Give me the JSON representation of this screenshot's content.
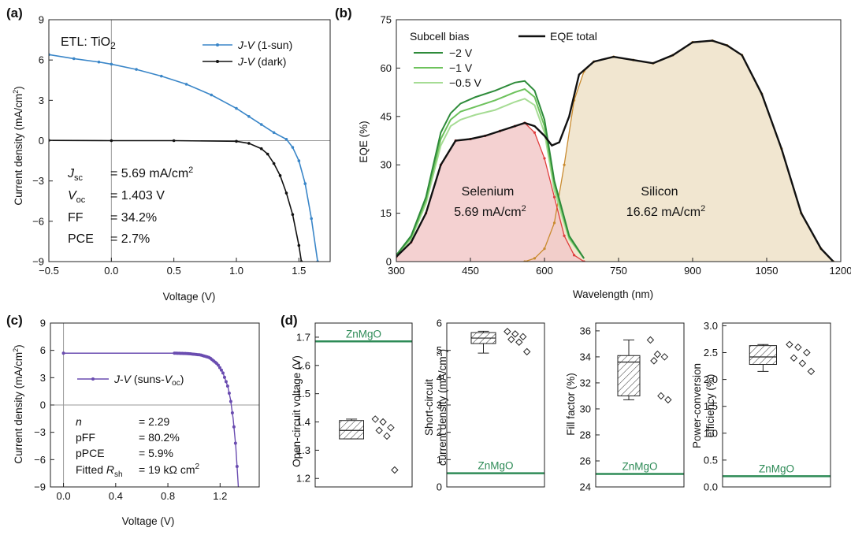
{
  "chart_data": [
    {
      "panel": "(a)",
      "type": "line",
      "annotation": "ETL: TiO2",
      "xlabel": "Voltage (V)",
      "ylabel": "Current density (mA/cm2)",
      "xlim": [
        -0.5,
        1.75
      ],
      "ylim": [
        -9,
        9
      ],
      "xticks": [
        "−0.5",
        "0.0",
        "0.5",
        "1.0",
        "1.5"
      ],
      "yticks": [
        "9",
        "6",
        "3",
        "0",
        "−3",
        "−6",
        "−9"
      ],
      "legend_position": "top-right",
      "series": [
        {
          "name": "J-V (1-sun)",
          "color": "#3a86c8",
          "x": [
            -0.5,
            -0.3,
            -0.1,
            0.0,
            0.2,
            0.4,
            0.6,
            0.8,
            1.0,
            1.1,
            1.2,
            1.3,
            1.4,
            1.45,
            1.5,
            1.55,
            1.6,
            1.65
          ],
          "y": [
            6.4,
            6.1,
            5.85,
            5.69,
            5.3,
            4.8,
            4.2,
            3.4,
            2.4,
            1.8,
            1.2,
            0.6,
            0.1,
            -0.5,
            -1.5,
            -3.2,
            -5.8,
            -9.0
          ]
        },
        {
          "name": "J-V (dark)",
          "color": "#111111",
          "x": [
            -0.5,
            0.0,
            0.5,
            1.0,
            1.1,
            1.2,
            1.25,
            1.3,
            1.35,
            1.4,
            1.45,
            1.5,
            1.52
          ],
          "y": [
            0.02,
            0.0,
            0.0,
            -0.05,
            -0.2,
            -0.6,
            -1.0,
            -1.7,
            -2.6,
            -3.9,
            -5.5,
            -7.8,
            -9.0
          ]
        }
      ],
      "metrics": [
        {
          "label": "Jsc",
          "value": "= 5.69 mA/cm2"
        },
        {
          "label": "Voc",
          "value": "= 1.403 V"
        },
        {
          "label": "FF",
          "value": "= 34.2%"
        },
        {
          "label": "PCE",
          "value": "= 2.7%"
        }
      ]
    },
    {
      "panel": "(b)",
      "type": "area",
      "xlabel": "Wavelength (nm)",
      "ylabel": "EQE (%)",
      "xlim": [
        300,
        1200
      ],
      "ylim": [
        0,
        75
      ],
      "xticks": [
        "300",
        "450",
        "600",
        "750",
        "900",
        "1050",
        "1200"
      ],
      "yticks": [
        "0",
        "15",
        "30",
        "45",
        "60",
        "75"
      ],
      "legend_title": "Subcell bias",
      "legend_position": "top-left",
      "series": [
        {
          "name": "−2 V",
          "color": "#2e8b3a",
          "x": [
            300,
            330,
            360,
            390,
            410,
            430,
            460,
            500,
            540,
            560,
            580,
            600,
            620,
            650,
            680
          ],
          "y": [
            2,
            8,
            20,
            40,
            46,
            49,
            51,
            53,
            55.5,
            56,
            53,
            44,
            25,
            8,
            1
          ]
        },
        {
          "name": "−1 V",
          "color": "#6dc25c",
          "x": [
            300,
            330,
            360,
            390,
            410,
            430,
            460,
            500,
            540,
            560,
            580,
            600,
            620,
            650,
            680
          ],
          "y": [
            2,
            7.5,
            19,
            38,
            44,
            46.5,
            48,
            50,
            52.5,
            53.5,
            51,
            42,
            24,
            7.5,
            1
          ]
        },
        {
          "name": "−0.5 V",
          "color": "#a6dc94",
          "x": [
            300,
            330,
            360,
            390,
            410,
            430,
            460,
            500,
            540,
            560,
            580,
            600,
            620,
            650,
            680
          ],
          "y": [
            2,
            7,
            18,
            36,
            42,
            44,
            45.5,
            47,
            49.5,
            50.5,
            48.5,
            40,
            22,
            7,
            1
          ]
        },
        {
          "name": "EQE total",
          "color": "#111111",
          "x": [
            300,
            330,
            360,
            390,
            420,
            450,
            480,
            510,
            540,
            560,
            580,
            600,
            615,
            630,
            650,
            670,
            700,
            740,
            780,
            820,
            860,
            900,
            940,
            970,
            1000,
            1040,
            1080,
            1120,
            1160,
            1185
          ],
          "y": [
            1.5,
            6,
            15,
            30,
            37.5,
            38,
            39,
            40.5,
            42,
            43,
            42,
            39,
            36,
            37,
            45,
            58,
            62,
            63.5,
            62.5,
            61.5,
            64,
            68,
            68.5,
            67,
            64,
            52,
            35,
            15,
            4,
            0
          ]
        },
        {
          "name": "",
          "color": "#e03c3c",
          "x": [
            300,
            330,
            360,
            390,
            420,
            450,
            480,
            510,
            540,
            560,
            580,
            600,
            620,
            640,
            660,
            680
          ],
          "y": [
            1.5,
            6,
            15,
            30,
            37.5,
            38,
            39,
            40.5,
            42,
            43,
            40,
            32,
            20,
            8,
            2,
            0
          ]
        },
        {
          "name": "",
          "color": "#c98a2e",
          "x": [
            560,
            580,
            600,
            620,
            640,
            660,
            680,
            700,
            740,
            780,
            820,
            860,
            900,
            940,
            970,
            1000,
            1040,
            1080,
            1120,
            1160,
            1185
          ],
          "y": [
            0,
            1,
            4,
            12,
            30,
            50,
            59,
            62,
            63.5,
            62.5,
            61.5,
            64,
            68,
            68.5,
            67,
            64,
            52,
            35,
            15,
            4,
            0
          ]
        }
      ],
      "regions": [
        {
          "label": "Selenium",
          "value": "5.69 mA/cm2",
          "color": "#f2c9c9"
        },
        {
          "label": "Silicon",
          "value": "16.62 mA/cm2",
          "color": "#efe2c8"
        }
      ]
    },
    {
      "panel": "(c)",
      "type": "line",
      "xlabel": "Voltage (V)",
      "ylabel": "Current density (mA/cm2)",
      "xlim": [
        -0.1,
        1.5
      ],
      "ylim": [
        -9,
        9
      ],
      "xticks": [
        "0.0",
        "0.4",
        "0.8",
        "1.2"
      ],
      "yticks": [
        "9",
        "6",
        "3",
        "0",
        "−3",
        "−6",
        "−9"
      ],
      "legend_position": "middle-left",
      "series": [
        {
          "name": "J-V (suns-Voc)",
          "color": "#6a4cb0",
          "x": [
            0.0,
            0.85,
            0.95,
            1.05,
            1.12,
            1.18,
            1.22,
            1.26,
            1.28,
            1.3,
            1.32,
            1.34
          ],
          "y": [
            5.69,
            5.69,
            5.65,
            5.5,
            5.2,
            4.5,
            3.6,
            2.0,
            0.6,
            -1.5,
            -4.5,
            -9.0
          ]
        }
      ],
      "metrics": [
        {
          "label": "n",
          "value": "= 2.29"
        },
        {
          "label": "pFF",
          "value": "= 80.2%"
        },
        {
          "label": "pPCE",
          "value": "= 5.9%"
        },
        {
          "label": "Fitted Rsh",
          "value": "= 19 kΩ cm2"
        }
      ]
    },
    {
      "panel": "(d)",
      "type": "box",
      "reference_label": "ZnMgO",
      "reference_color": "#2e8b57",
      "subplots": [
        {
          "ylabel": "Open-circuit voltage (V)",
          "ylim": [
            1.17,
            1.75
          ],
          "yticks": [
            "1.2",
            "1.3",
            "1.4",
            "1.5",
            "1.6",
            "1.7"
          ],
          "box": {
            "whisker_low": 1.34,
            "q1": 1.34,
            "median": 1.37,
            "q3": 1.405,
            "whisker_high": 1.41
          },
          "points": [
            1.41,
            1.4,
            1.38,
            1.37,
            1.35,
            1.23
          ],
          "reference": 1.685
        },
        {
          "ylabel": "Short-circuit current density (mA/cm2)",
          "ylim": [
            0,
            6
          ],
          "yticks": [
            "0",
            "1",
            "2",
            "3",
            "4",
            "5",
            "6"
          ],
          "box": {
            "whisker_low": 4.9,
            "q1": 5.25,
            "median": 5.45,
            "q3": 5.65,
            "whisker_high": 5.7
          },
          "points": [
            5.69,
            5.6,
            5.5,
            5.4,
            5.3,
            4.95
          ],
          "reference": 0.5
        },
        {
          "ylabel": "Fill factor (%)",
          "ylim": [
            24,
            36.6
          ],
          "yticks": [
            "24",
            "26",
            "28",
            "30",
            "32",
            "34",
            "36"
          ],
          "box": {
            "whisker_low": 30.7,
            "q1": 31.0,
            "median": 33.6,
            "q3": 34.1,
            "whisker_high": 35.3
          },
          "points": [
            35.3,
            34.2,
            34.0,
            33.7,
            31.0,
            30.7
          ],
          "reference": 25.0
        },
        {
          "ylabel": "Power-conversion efficiency (%)",
          "ylim": [
            0,
            3.05
          ],
          "yticks": [
            "0.0",
            "0.5",
            "1.0",
            "1.5",
            "2.0",
            "2.5",
            "3.0"
          ],
          "box": {
            "whisker_low": 2.15,
            "q1": 2.28,
            "median": 2.42,
            "q3": 2.63,
            "whisker_high": 2.65
          },
          "points": [
            2.65,
            2.6,
            2.5,
            2.4,
            2.3,
            2.15
          ],
          "reference": 0.2
        }
      ]
    }
  ]
}
